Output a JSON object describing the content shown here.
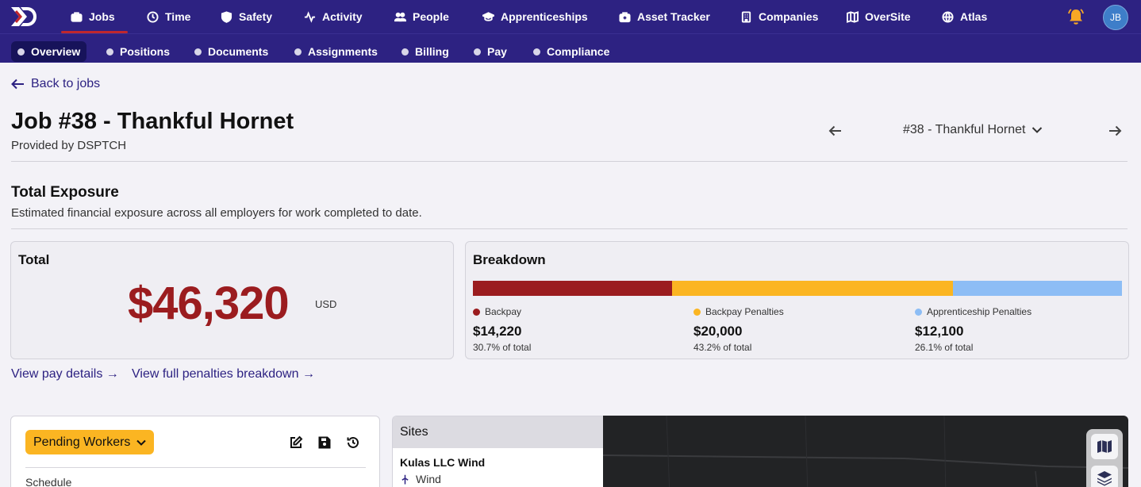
{
  "topnav": {
    "items": [
      {
        "label": "Jobs",
        "icon": "briefcase-icon",
        "active": true
      },
      {
        "label": "Time",
        "icon": "clock-icon"
      },
      {
        "label": "Safety",
        "icon": "shield-icon"
      },
      {
        "label": "Activity",
        "icon": "activity-icon"
      },
      {
        "label": "People",
        "icon": "people-icon"
      },
      {
        "label": "Apprenticeships",
        "icon": "graduation-cap-icon"
      },
      {
        "label": "Asset Tracker",
        "icon": "toolbox-icon"
      },
      {
        "label": "Companies",
        "icon": "building-icon"
      },
      {
        "label": "OverSite",
        "icon": "map-icon"
      },
      {
        "label": "Atlas",
        "icon": "globe-icon"
      }
    ],
    "avatar_initials": "JB",
    "brand_color": "#2d2282",
    "bell_color": "#f9a825"
  },
  "subnav": {
    "items": [
      {
        "label": "Overview",
        "active": true
      },
      {
        "label": "Positions"
      },
      {
        "label": "Documents"
      },
      {
        "label": "Assignments"
      },
      {
        "label": "Billing"
      },
      {
        "label": "Pay"
      },
      {
        "label": "Compliance"
      }
    ]
  },
  "back_label": "Back to jobs",
  "job": {
    "title": "Job #38 - Thankful Hornet",
    "provided_by": "Provided by DSPTCH",
    "selector_value": "#38 - Thankful Hornet"
  },
  "exposure": {
    "title": "Total Exposure",
    "description": "Estimated financial exposure across all employers for work completed to date.",
    "total": {
      "heading": "Total",
      "amount": "$46,320",
      "currency": "USD"
    },
    "breakdown": {
      "heading": "Breakdown",
      "items": [
        {
          "label": "Backpay",
          "value": "$14,220",
          "pct_text": "30.7% of total",
          "fraction": 0.307,
          "color": "#9b1c1f"
        },
        {
          "label": "Backpay Penalties",
          "value": "$20,000",
          "pct_text": "43.2% of total",
          "fraction": 0.432,
          "color": "#fbb522"
        },
        {
          "label": "Apprenticeship Penalties",
          "value": "$12,100",
          "pct_text": "26.1% of total",
          "fraction": 0.261,
          "color": "#8dbdf5"
        }
      ]
    },
    "links": {
      "pay_details": "View pay details →",
      "penalties": "View full penalties breakdown →"
    }
  },
  "status_panel": {
    "status_label": "Pending Workers",
    "status_color": "#fbb522",
    "schedule_label": "Schedule"
  },
  "sites": {
    "heading": "Sites",
    "items": [
      {
        "name": "Kulas LLC Wind",
        "type": "Wind"
      }
    ]
  }
}
